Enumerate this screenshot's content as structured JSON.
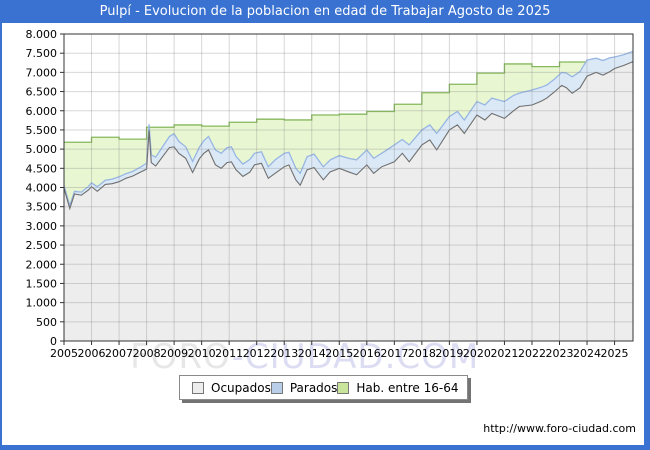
{
  "title": "Pulpí - Evolucion de la poblacion en edad de Trabajar Agosto de 2025",
  "watermark": {
    "part1": "FORO",
    "part2": "-CIUDAD.COM"
  },
  "footer": {
    "url": "http://www.foro-ciudad.com"
  },
  "legend": {
    "items": [
      {
        "label": "Ocupados",
        "fill": "#ededed",
        "border": "#777777"
      },
      {
        "label": "Parados",
        "fill": "#b9cfe9",
        "border": "#777777"
      },
      {
        "label": "Hab. entre 16-64",
        "fill": "#c9e59b",
        "border": "#777777"
      }
    ]
  },
  "chart_data": {
    "type": "area",
    "title": "Pulpí - Evolucion de la poblacion en edad de Trabajar Agosto de 2025",
    "x_axis": {
      "min": 2005,
      "max": 2025.67,
      "tick_labels": [
        "2005",
        "2006",
        "2007",
        "2008",
        "2009",
        "2010",
        "2011",
        "2012",
        "2013",
        "2014",
        "2015",
        "2016",
        "2017",
        "2018",
        "2019",
        "2020",
        "2021",
        "2022",
        "2023",
        "2024",
        "2025"
      ]
    },
    "y_axis": {
      "min": 0,
      "max": 8000,
      "step": 500,
      "tick_labels": [
        "0",
        "500",
        "1.000",
        "1.500",
        "2.000",
        "2.500",
        "3.000",
        "3.500",
        "4.000",
        "4.500",
        "5.000",
        "5.500",
        "6.000",
        "6.500",
        "7.000",
        "7.500",
        "8.000"
      ]
    },
    "grid": {
      "color": "rgba(130,130,130,0.32)"
    },
    "border_color": "#333333",
    "series": [
      {
        "name": "Hab. entre 16-64",
        "mode": "annual-steps",
        "fill": "#e9f6d2",
        "line": "#85b95b",
        "points": [
          [
            2005,
            5180
          ],
          [
            2006,
            5310
          ],
          [
            2007,
            5260
          ],
          [
            2008,
            5570
          ],
          [
            2009,
            5630
          ],
          [
            2010,
            5600
          ],
          [
            2011,
            5700
          ],
          [
            2012,
            5780
          ],
          [
            2013,
            5760
          ],
          [
            2014,
            5890
          ],
          [
            2015,
            5910
          ],
          [
            2016,
            5980
          ],
          [
            2017,
            6170
          ],
          [
            2018,
            6470
          ],
          [
            2019,
            6690
          ],
          [
            2020,
            6980
          ],
          [
            2021,
            7220
          ],
          [
            2022,
            7150
          ],
          [
            2023,
            7270
          ],
          [
            2024,
            7290
          ],
          [
            2025,
            7300
          ]
        ]
      },
      {
        "name": "Parados",
        "mode": "stacked-on-ocupados",
        "fill": "#dbe9f7",
        "line": "#97b6e2",
        "points": [
          [
            2005.0,
            70
          ],
          [
            2005.21,
            80
          ],
          [
            2005.38,
            70
          ],
          [
            2005.63,
            80
          ],
          [
            2005.88,
            90
          ],
          [
            2006.0,
            100
          ],
          [
            2006.21,
            120
          ],
          [
            2006.5,
            110
          ],
          [
            2006.75,
            120
          ],
          [
            2007.0,
            130
          ],
          [
            2007.25,
            120
          ],
          [
            2007.5,
            120
          ],
          [
            2007.75,
            130
          ],
          [
            2008.0,
            150
          ],
          [
            2008.09,
            170
          ],
          [
            2008.17,
            200
          ],
          [
            2008.33,
            230
          ],
          [
            2008.58,
            260
          ],
          [
            2008.83,
            290
          ],
          [
            2009.0,
            340
          ],
          [
            2009.17,
            310
          ],
          [
            2009.42,
            300
          ],
          [
            2009.67,
            290
          ],
          [
            2009.92,
            300
          ],
          [
            2010.08,
            330
          ],
          [
            2010.25,
            350
          ],
          [
            2010.5,
            390
          ],
          [
            2010.71,
            390
          ],
          [
            2010.92,
            390
          ],
          [
            2011.08,
            390
          ],
          [
            2011.25,
            350
          ],
          [
            2011.5,
            320
          ],
          [
            2011.75,
            330
          ],
          [
            2011.92,
            300
          ],
          [
            2012.17,
            300
          ],
          [
            2012.42,
            300
          ],
          [
            2012.67,
            350
          ],
          [
            2013.0,
            350
          ],
          [
            2013.17,
            330
          ],
          [
            2013.42,
            300
          ],
          [
            2013.58,
            310
          ],
          [
            2013.83,
            340
          ],
          [
            2014.08,
            350
          ],
          [
            2014.42,
            340
          ],
          [
            2014.67,
            310
          ],
          [
            2015.0,
            330
          ],
          [
            2015.33,
            350
          ],
          [
            2015.63,
            390
          ],
          [
            2016.0,
            390
          ],
          [
            2016.25,
            390
          ],
          [
            2016.54,
            350
          ],
          [
            2017.0,
            440
          ],
          [
            2017.29,
            360
          ],
          [
            2017.54,
            440
          ],
          [
            2018.0,
            390
          ],
          [
            2018.29,
            390
          ],
          [
            2018.54,
            430
          ],
          [
            2019.0,
            350
          ],
          [
            2019.29,
            350
          ],
          [
            2019.54,
            350
          ],
          [
            2020.0,
            350
          ],
          [
            2020.29,
            390
          ],
          [
            2020.54,
            400
          ],
          [
            2020.83,
            420
          ],
          [
            2021.0,
            440
          ],
          [
            2021.33,
            400
          ],
          [
            2021.54,
            350
          ],
          [
            2022.0,
            390
          ],
          [
            2022.33,
            360
          ],
          [
            2022.54,
            340
          ],
          [
            2022.83,
            330
          ],
          [
            2023.08,
            340
          ],
          [
            2023.25,
            380
          ],
          [
            2023.46,
            430
          ],
          [
            2023.75,
            420
          ],
          [
            2024.0,
            420
          ],
          [
            2024.33,
            370
          ],
          [
            2024.58,
            380
          ],
          [
            2024.83,
            360
          ],
          [
            2025.0,
            300
          ],
          [
            2025.33,
            280
          ],
          [
            2025.67,
            270
          ]
        ]
      },
      {
        "name": "Ocupados",
        "mode": "line-area",
        "fill": "#ededed",
        "line": "#6f6f6f",
        "points": [
          [
            2005.0,
            3980
          ],
          [
            2005.21,
            3450
          ],
          [
            2005.38,
            3830
          ],
          [
            2005.63,
            3800
          ],
          [
            2005.88,
            3930
          ],
          [
            2006.0,
            4020
          ],
          [
            2006.21,
            3900
          ],
          [
            2006.5,
            4080
          ],
          [
            2006.75,
            4100
          ],
          [
            2007.0,
            4150
          ],
          [
            2007.25,
            4240
          ],
          [
            2007.5,
            4300
          ],
          [
            2007.75,
            4390
          ],
          [
            2008.0,
            4480
          ],
          [
            2008.09,
            5480
          ],
          [
            2008.17,
            4650
          ],
          [
            2008.33,
            4560
          ],
          [
            2008.58,
            4800
          ],
          [
            2008.83,
            5040
          ],
          [
            2009.0,
            5060
          ],
          [
            2009.17,
            4890
          ],
          [
            2009.42,
            4760
          ],
          [
            2009.67,
            4390
          ],
          [
            2009.92,
            4750
          ],
          [
            2010.08,
            4890
          ],
          [
            2010.25,
            4980
          ],
          [
            2010.5,
            4590
          ],
          [
            2010.71,
            4500
          ],
          [
            2010.92,
            4650
          ],
          [
            2011.08,
            4670
          ],
          [
            2011.25,
            4460
          ],
          [
            2011.5,
            4290
          ],
          [
            2011.75,
            4400
          ],
          [
            2011.92,
            4590
          ],
          [
            2012.17,
            4630
          ],
          [
            2012.42,
            4240
          ],
          [
            2012.67,
            4370
          ],
          [
            2013.0,
            4540
          ],
          [
            2013.17,
            4590
          ],
          [
            2013.42,
            4200
          ],
          [
            2013.58,
            4060
          ],
          [
            2013.83,
            4460
          ],
          [
            2014.08,
            4520
          ],
          [
            2014.42,
            4200
          ],
          [
            2014.67,
            4410
          ],
          [
            2015.0,
            4500
          ],
          [
            2015.33,
            4410
          ],
          [
            2015.63,
            4330
          ],
          [
            2016.0,
            4590
          ],
          [
            2016.25,
            4370
          ],
          [
            2016.54,
            4540
          ],
          [
            2017.0,
            4670
          ],
          [
            2017.29,
            4890
          ],
          [
            2017.54,
            4670
          ],
          [
            2018.0,
            5110
          ],
          [
            2018.29,
            5240
          ],
          [
            2018.54,
            4980
          ],
          [
            2019.0,
            5500
          ],
          [
            2019.29,
            5630
          ],
          [
            2019.54,
            5410
          ],
          [
            2020.0,
            5890
          ],
          [
            2020.29,
            5760
          ],
          [
            2020.54,
            5930
          ],
          [
            2020.83,
            5850
          ],
          [
            2021.0,
            5800
          ],
          [
            2021.33,
            6000
          ],
          [
            2021.54,
            6110
          ],
          [
            2022.0,
            6150
          ],
          [
            2022.33,
            6250
          ],
          [
            2022.54,
            6330
          ],
          [
            2022.83,
            6500
          ],
          [
            2023.08,
            6660
          ],
          [
            2023.25,
            6600
          ],
          [
            2023.46,
            6455
          ],
          [
            2023.75,
            6600
          ],
          [
            2024.0,
            6900
          ],
          [
            2024.33,
            7000
          ],
          [
            2024.58,
            6930
          ],
          [
            2024.83,
            7020
          ],
          [
            2025.0,
            7100
          ],
          [
            2025.33,
            7180
          ],
          [
            2025.67,
            7280
          ]
        ]
      }
    ]
  }
}
